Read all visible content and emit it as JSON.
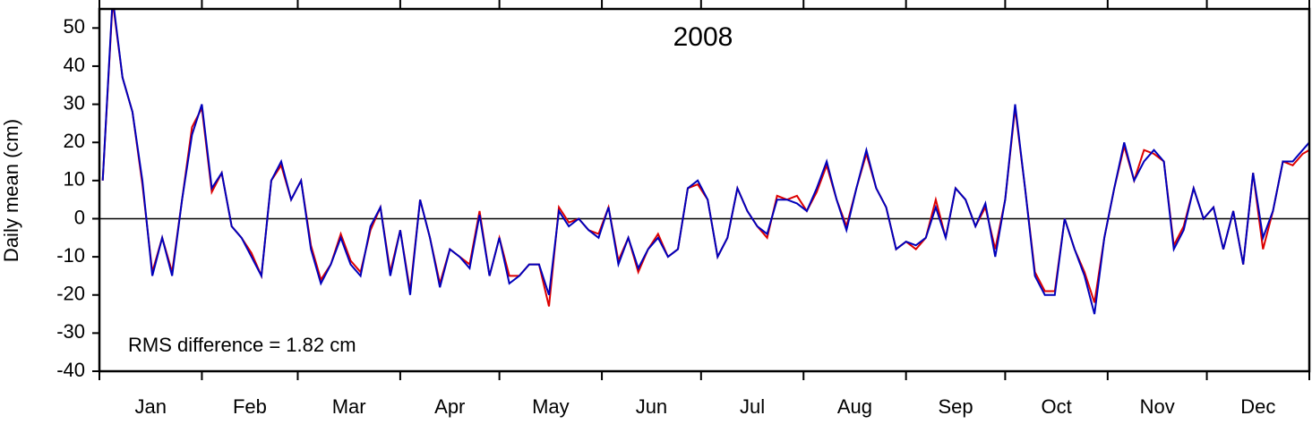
{
  "chart_data": {
    "type": "line",
    "title": "2008",
    "y_label": "Daily mean (cm)",
    "annotation": "RMS difference = 1.82 cm",
    "categories": [
      "Jan",
      "Feb",
      "Mar",
      "Apr",
      "May",
      "Jun",
      "Jul",
      "Aug",
      "Sep",
      "Oct",
      "Nov",
      "Dec"
    ],
    "xlim": [
      0,
      366
    ],
    "xticks": [
      0,
      31,
      60,
      91,
      121,
      152,
      182,
      213,
      244,
      274,
      305,
      335,
      366
    ],
    "ylim": [
      -40,
      55
    ],
    "yticks": [
      -40,
      -30,
      -20,
      -10,
      0,
      10,
      20,
      30,
      40,
      50
    ],
    "zero_line": true,
    "x": [
      1,
      4,
      7,
      10,
      13,
      16,
      19,
      22,
      25,
      28,
      31,
      34,
      37,
      40,
      43,
      46,
      49,
      52,
      55,
      58,
      61,
      64,
      67,
      70,
      73,
      76,
      79,
      82,
      85,
      88,
      91,
      94,
      97,
      100,
      103,
      106,
      109,
      112,
      115,
      118,
      121,
      124,
      127,
      130,
      133,
      136,
      139,
      142,
      145,
      148,
      151,
      154,
      157,
      160,
      163,
      166,
      169,
      172,
      175,
      178,
      181,
      184,
      187,
      190,
      193,
      196,
      199,
      202,
      205,
      208,
      211,
      214,
      217,
      220,
      223,
      226,
      229,
      232,
      235,
      238,
      241,
      244,
      247,
      250,
      253,
      256,
      259,
      262,
      265,
      268,
      271,
      274,
      277,
      280,
      283,
      286,
      289,
      292,
      295,
      298,
      301,
      304,
      307,
      310,
      313,
      316,
      319,
      322,
      325,
      328,
      331,
      334,
      337,
      340,
      343,
      346,
      349,
      352,
      355,
      358,
      361,
      364,
      366
    ],
    "series": [
      {
        "name": "red",
        "color": "#dd0000",
        "values": [
          10,
          57,
          37,
          28,
          9,
          -14,
          -5,
          -14,
          5,
          24,
          29,
          7,
          12,
          -2,
          -5,
          -9,
          -15,
          10,
          14,
          5,
          10,
          -7,
          -16,
          -12,
          -4,
          -11,
          -14,
          -3,
          3,
          -14,
          -3,
          -19,
          5,
          -5,
          -17,
          -8,
          -10,
          -12,
          2,
          -15,
          -5,
          -15,
          -15,
          -12,
          -12,
          -23,
          3,
          -1,
          0,
          -3,
          -4,
          3,
          -11,
          -5,
          -14,
          -8,
          -4,
          -10,
          -8,
          8,
          9,
          5,
          -10,
          -5,
          8,
          2,
          -2,
          -5,
          6,
          5,
          6,
          2,
          7,
          14,
          5,
          -2,
          8,
          17,
          8,
          3,
          -8,
          -6,
          -8,
          -5,
          5,
          -5,
          8,
          5,
          -2,
          3,
          -8,
          5,
          29,
          8,
          -14,
          -19,
          -19,
          0,
          -8,
          -14,
          -22,
          -5,
          8,
          19,
          10,
          18,
          17,
          15,
          -7,
          -2,
          8,
          0,
          3,
          -8,
          2,
          -12,
          12,
          -8,
          2,
          15,
          14,
          17,
          18
        ]
      },
      {
        "name": "blue",
        "color": "#0000bb",
        "values": [
          10,
          58,
          37,
          28,
          10,
          -15,
          -5,
          -15,
          5,
          22,
          30,
          8,
          12,
          -2,
          -5,
          -10,
          -15,
          10,
          15,
          5,
          10,
          -8,
          -17,
          -12,
          -5,
          -12,
          -15,
          -2,
          3,
          -15,
          -3,
          -20,
          5,
          -5,
          -18,
          -8,
          -10,
          -13,
          1,
          -15,
          -5,
          -17,
          -15,
          -12,
          -12,
          -20,
          2,
          -2,
          0,
          -3,
          -5,
          3,
          -12,
          -5,
          -13,
          -8,
          -5,
          -10,
          -8,
          8,
          10,
          5,
          -10,
          -5,
          8,
          2,
          -2,
          -4,
          5,
          5,
          4,
          2,
          8,
          15,
          5,
          -3,
          8,
          18,
          8,
          3,
          -8,
          -6,
          -7,
          -5,
          3,
          -5,
          8,
          5,
          -2,
          4,
          -10,
          5,
          30,
          8,
          -15,
          -20,
          -20,
          0,
          -8,
          -15,
          -25,
          -5,
          8,
          20,
          10,
          15,
          18,
          15,
          -8,
          -3,
          8,
          0,
          3,
          -8,
          2,
          -12,
          12,
          -5,
          2,
          15,
          15,
          18,
          20
        ]
      }
    ]
  }
}
